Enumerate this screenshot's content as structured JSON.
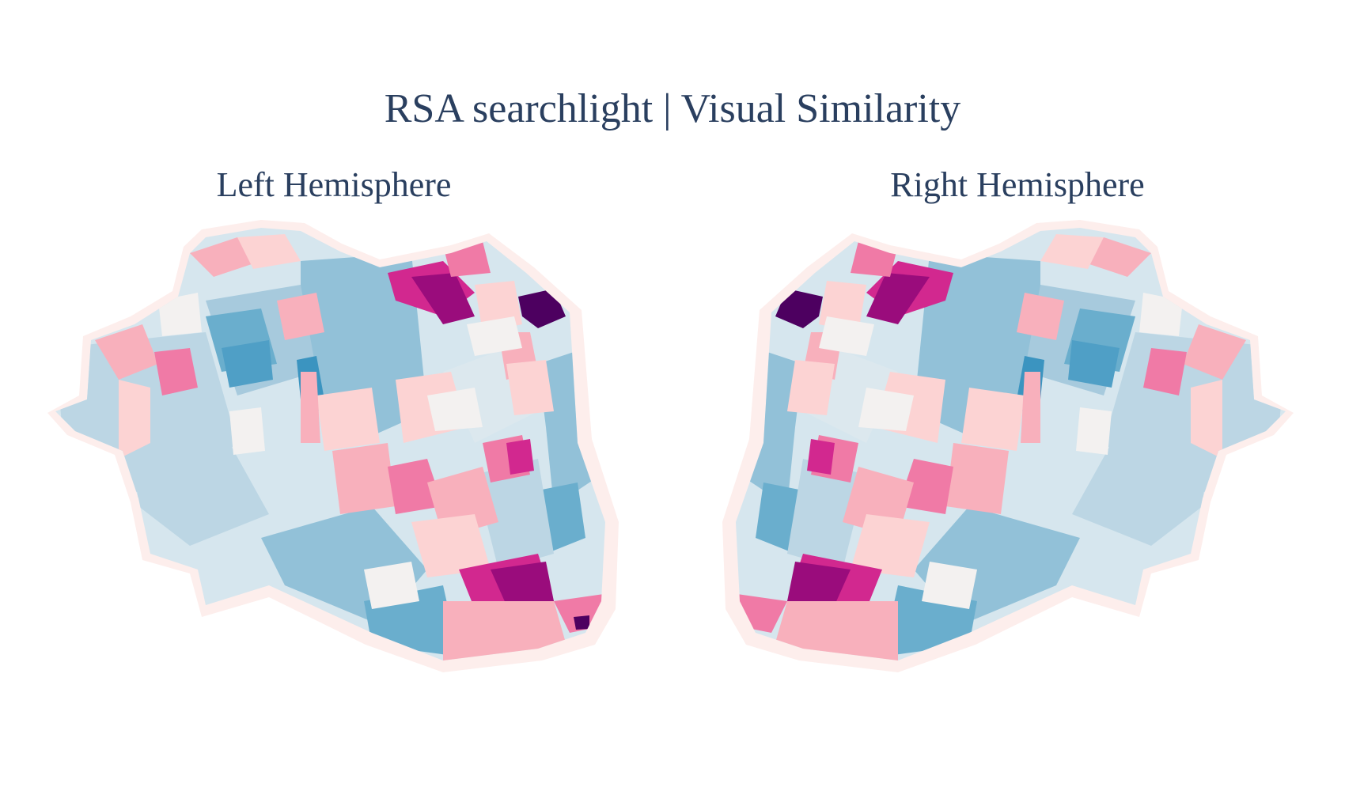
{
  "title": "RSA searchlight | Visual Similarity",
  "hemispheres": [
    {
      "id": "left",
      "label": "Left Hemisphere"
    },
    {
      "id": "right",
      "label": "Right Hemisphere"
    }
  ],
  "colors": {
    "text": "#2a3f5f",
    "halo": "#fdecea",
    "palette": {
      "blue_strong": "#3b94c0",
      "blue_mid": "#6aaecd",
      "blue_light": "#92c1d8",
      "blue_pale": "#bcd6e4",
      "blue_faint": "#dce8ee",
      "neutral": "#f3f1f0",
      "pink_pale": "#fcd3d3",
      "pink_light": "#f8b0bc",
      "pink_mid": "#f07aa6",
      "magenta": "#d2288f",
      "purple": "#9a0c7c",
      "deep_purple": "#4d0060"
    }
  }
}
